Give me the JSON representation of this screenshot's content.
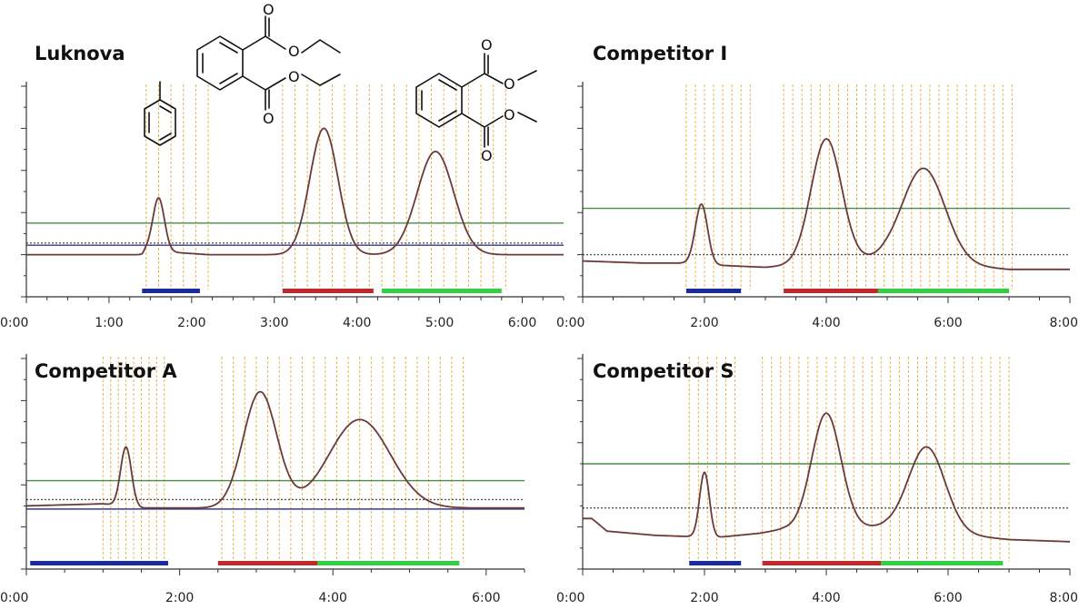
{
  "colors": {
    "trace": "#6b3a3a",
    "green_line": "#4a8a4a",
    "blue_line": "#3a3a8a",
    "dotted_line": "#555555",
    "fraction_lines": "#e0b040",
    "bar_blue": "#1a2aa0",
    "bar_red": "#c0282a",
    "bar_green": "#30d040"
  },
  "molecules": {
    "toluene": {
      "atoms": []
    },
    "diethyl_phthalate": {
      "atoms": [
        "O",
        "O",
        "O",
        "O"
      ]
    },
    "dimethyl_phthalate": {
      "atoms": [
        "O",
        "O",
        "O",
        "O"
      ]
    }
  },
  "chart_data": [
    {
      "type": "line",
      "title": "Luknova",
      "xlim": [
        0,
        6.5
      ],
      "ylim": [
        0,
        100
      ],
      "x_ticks": [
        "0:00",
        "1:00",
        "2:00",
        "3:00",
        "4:00",
        "5:00",
        "6:00"
      ],
      "x_tick_values": [
        0,
        1,
        2,
        3,
        4,
        5,
        6
      ],
      "baseline": [
        [
          0,
          20
        ],
        [
          1.4,
          20
        ],
        [
          1.45,
          22
        ],
        [
          2.2,
          20
        ],
        [
          3.0,
          20
        ],
        [
          6.5,
          20
        ]
      ],
      "peaks": [
        {
          "center": 1.6,
          "height": 47,
          "width": 0.07
        },
        {
          "center": 3.6,
          "height": 80,
          "width": 0.17
        },
        {
          "center": 4.95,
          "height": 69,
          "width": 0.22
        }
      ],
      "hlines": [
        {
          "y": 35,
          "style": "green"
        },
        {
          "y": 25.5,
          "style": "dotted"
        },
        {
          "y": 24.5,
          "style": "blue"
        }
      ],
      "fractions": [
        1.45,
        1.6,
        1.75,
        1.9,
        2.05,
        2.2,
        3.1,
        3.25,
        3.4,
        3.55,
        3.7,
        3.85,
        4.0,
        4.15,
        4.3,
        4.45,
        4.6,
        4.75,
        4.9,
        5.05,
        5.2,
        5.35,
        5.5,
        5.65,
        5.8
      ],
      "bars": [
        {
          "from": 1.4,
          "to": 2.1,
          "color": "blue"
        },
        {
          "from": 3.1,
          "to": 4.2,
          "color": "red"
        },
        {
          "from": 4.3,
          "to": 5.75,
          "color": "green"
        }
      ]
    },
    {
      "type": "line",
      "title": "Competitor I",
      "xlim": [
        0,
        8
      ],
      "ylim": [
        0,
        100
      ],
      "x_ticks": [
        "0:00",
        "2:00",
        "4:00",
        "6:00",
        "8:00"
      ],
      "x_tick_values": [
        0,
        2,
        4,
        6,
        8
      ],
      "baseline": [
        [
          0,
          17
        ],
        [
          1.0,
          16
        ],
        [
          1.8,
          16
        ],
        [
          2.2,
          15
        ],
        [
          3.0,
          14
        ],
        [
          5.0,
          18
        ],
        [
          7.0,
          13
        ],
        [
          8.0,
          13
        ]
      ],
      "peaks": [
        {
          "center": 1.95,
          "height": 44,
          "width": 0.1
        },
        {
          "center": 4.0,
          "height": 75,
          "width": 0.25
        },
        {
          "center": 5.6,
          "height": 61,
          "width": 0.35
        }
      ],
      "hlines": [
        {
          "y": 42,
          "style": "green"
        },
        {
          "y": 20,
          "style": "dotted"
        }
      ],
      "fractions": [
        1.7,
        1.85,
        2.0,
        2.15,
        2.3,
        2.45,
        2.6,
        2.75,
        3.3,
        3.45,
        3.6,
        3.75,
        3.9,
        4.05,
        4.2,
        4.35,
        4.5,
        4.65,
        4.8,
        4.95,
        5.1,
        5.25,
        5.4,
        5.55,
        5.7,
        5.85,
        6.0,
        6.15,
        6.3,
        6.45,
        6.6,
        6.75,
        6.9,
        7.05
      ],
      "bars": [
        {
          "from": 1.7,
          "to": 2.6,
          "color": "blue"
        },
        {
          "from": 3.3,
          "to": 4.85,
          "color": "red"
        },
        {
          "from": 4.85,
          "to": 7.0,
          "color": "green"
        }
      ]
    },
    {
      "type": "line",
      "title": "Competitor A",
      "xlim": [
        0,
        6.5
      ],
      "ylim": [
        0,
        100
      ],
      "x_ticks": [
        "0:00",
        "2:00",
        "4:00",
        "6:00"
      ],
      "x_tick_values": [
        0,
        2,
        4,
        6
      ],
      "baseline": [
        [
          0,
          30
        ],
        [
          1.0,
          31
        ],
        [
          1.5,
          29
        ],
        [
          2.4,
          29
        ],
        [
          3.2,
          29
        ],
        [
          6.5,
          29
        ]
      ],
      "peaks": [
        {
          "center": 1.3,
          "height": 58,
          "width": 0.07
        },
        {
          "center": 3.05,
          "height": 84,
          "width": 0.22
        },
        {
          "center": 4.35,
          "height": 71,
          "width": 0.4
        }
      ],
      "hlines": [
        {
          "y": 42,
          "style": "green"
        },
        {
          "y": 33,
          "style": "dotted"
        },
        {
          "y": 28.5,
          "style": "blue"
        }
      ],
      "fractions": [
        1.0,
        1.1,
        1.2,
        1.3,
        1.4,
        1.5,
        1.6,
        1.7,
        1.8,
        2.55,
        2.7,
        2.85,
        3.0,
        3.15,
        3.3,
        3.45,
        3.6,
        3.75,
        3.9,
        4.05,
        4.2,
        4.35,
        4.5,
        4.65,
        4.8,
        4.95,
        5.1,
        5.25,
        5.4,
        5.55,
        5.7
      ],
      "bars": [
        {
          "from": 0.05,
          "to": 1.85,
          "color": "blue"
        },
        {
          "from": 2.5,
          "to": 3.8,
          "color": "red"
        },
        {
          "from": 3.8,
          "to": 5.65,
          "color": "green"
        }
      ]
    },
    {
      "type": "line",
      "title": "Competitor S",
      "xlim": [
        0,
        8
      ],
      "ylim": [
        0,
        100
      ],
      "x_ticks": [
        "0:00",
        "2:00",
        "4:00",
        "6:00",
        "8:00"
      ],
      "x_tick_values": [
        0,
        2,
        4,
        6,
        8
      ],
      "baseline": [
        [
          0,
          24
        ],
        [
          0.15,
          24
        ],
        [
          0.4,
          18
        ],
        [
          1.2,
          16
        ],
        [
          2.2,
          15
        ],
        [
          2.9,
          17
        ],
        [
          3.3,
          19
        ],
        [
          5.0,
          20
        ],
        [
          7.0,
          14
        ],
        [
          8.0,
          13
        ]
      ],
      "peaks": [
        {
          "center": 2.0,
          "height": 46,
          "width": 0.08
        },
        {
          "center": 4.0,
          "height": 74,
          "width": 0.24
        },
        {
          "center": 5.65,
          "height": 58,
          "width": 0.3
        }
      ],
      "hlines": [
        {
          "y": 50,
          "style": "green"
        },
        {
          "y": 29,
          "style": "dotted"
        }
      ],
      "fractions": [
        1.75,
        1.9,
        2.05,
        2.2,
        2.35,
        2.5,
        2.95,
        3.1,
        3.25,
        3.4,
        3.55,
        3.7,
        3.85,
        4.0,
        4.15,
        4.3,
        4.45,
        4.6,
        4.75,
        4.9,
        5.05,
        5.2,
        5.35,
        5.5,
        5.65,
        5.8,
        5.95,
        6.1,
        6.25,
        6.4,
        6.55,
        6.7,
        6.85,
        7.0
      ],
      "bars": [
        {
          "from": 1.75,
          "to": 2.6,
          "color": "blue"
        },
        {
          "from": 2.95,
          "to": 4.9,
          "color": "red"
        },
        {
          "from": 4.9,
          "to": 6.9,
          "color": "green"
        }
      ]
    }
  ]
}
